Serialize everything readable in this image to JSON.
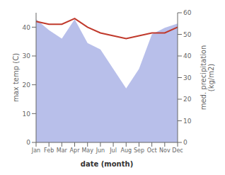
{
  "chart_data": {
    "type": "line",
    "categories": [
      "Jan",
      "Feb",
      "Mar",
      "Apr",
      "May",
      "Jun",
      "Jul",
      "Aug",
      "Sep",
      "Oct",
      "Nov",
      "Dec"
    ],
    "series": [
      {
        "type": "area",
        "color": "#b0b8e8",
        "axis": "y2",
        "values": [
          57,
          52,
          48,
          57,
          46,
          43,
          34,
          25,
          34,
          50,
          53,
          55
        ]
      },
      {
        "type": "line",
        "color": "#c0392b",
        "values": [
          42,
          41,
          41,
          43,
          40,
          38,
          37,
          36,
          37,
          38,
          38,
          40
        ]
      }
    ],
    "xlabel": "date (month)",
    "ylabel": "max temp (C)",
    "y2label": "med. precipitation\n(kg/m2)",
    "ylim": [
      0,
      45
    ],
    "yticks": [
      0,
      10,
      20,
      30,
      40
    ],
    "y2lim": [
      0,
      60
    ],
    "y2ticks": [
      0,
      10,
      20,
      30,
      40,
      50,
      60
    ],
    "grid": false
  }
}
